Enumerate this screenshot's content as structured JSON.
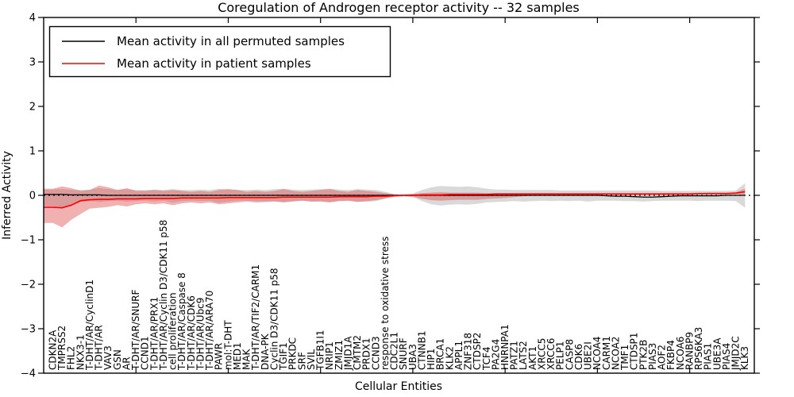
{
  "title": "Coregulation of Androgen receptor activity -- 32 samples",
  "axes": {
    "xlabel": "Cellular Entities",
    "ylabel": "Inferred Activity"
  },
  "chart_data": {
    "type": "line",
    "title": "Coregulation of Androgen receptor activity -- 32 samples",
    "xlabel": "Cellular Entities",
    "ylabel": "Inferred Activity",
    "ylim": [
      -4,
      4
    ],
    "grid": false,
    "legend_position": "upper left",
    "zero_line": 0,
    "yticks": [
      {
        "value": 4,
        "label": "4"
      },
      {
        "value": 3,
        "label": "3"
      },
      {
        "value": 2,
        "label": "2"
      },
      {
        "value": 1,
        "label": "1"
      },
      {
        "value": 0,
        "label": "0"
      },
      {
        "value": -1,
        "label": "−1"
      },
      {
        "value": -2,
        "label": "−2"
      },
      {
        "value": -3,
        "label": "−3"
      },
      {
        "value": -4,
        "label": "−4"
      }
    ],
    "xticks": [
      10,
      20,
      30,
      40,
      50,
      60,
      70
    ],
    "categories": [
      "CDKN2A",
      "TMPRSS2",
      "FHL2",
      "NKX3-1",
      "T-DHT/AR/CyclinD1",
      "T-DHT/AR",
      "VAV3",
      "GSN",
      "AR",
      "T-DHT/AR/SNURF",
      "CCND1",
      "T-DHT/AR/PRX1",
      "T-DHT/AR/Cyclin D3/CDK11 p58",
      "cell proliferation",
      "T-DHT/AR/Caspase 8",
      "T-DHT/AR/CDK6",
      "T-DHT/AR/Ubc9",
      "T-DHT/AR/ARA70",
      "PAWR",
      "mol:T-DHT",
      "MED1",
      "MAK",
      "T-DHT/AR/TIF2/CARM1",
      "DNA-PK",
      "Cyclin D3/CDK11 p58",
      "TGIF1",
      "PRKDC",
      "SRF",
      "SVIL",
      "TGFB1I1",
      "NRIP1",
      "ZMIZ1",
      "JMJD1A",
      "CMTM2",
      "PRDX1",
      "CCND3",
      "response to oxidative stress",
      "CDC2L1",
      "SNURF",
      "UBA3",
      "CTNNB1",
      "HIP1",
      "BRCA1",
      "KLK2",
      "APPL1",
      "ZNF318",
      "CTDSP2",
      "TCF4",
      "PA2G4",
      "HNRNPA1",
      "PATZ1",
      "LATS2",
      "AKT1",
      "XRCC5",
      "XRCC6",
      "PELP1",
      "CASP8",
      "CDK6",
      "UBE2I",
      "NCOA4",
      "CARM1",
      "NCOA2",
      "TMF1",
      "CTDSP1",
      "PTK2B",
      "PIAS3",
      "AOF2",
      "FKBP4",
      "NCOA6",
      "RANBP9",
      "RPS6KA3",
      "PIAS1",
      "UBE3A",
      "PIAS4",
      "JMJD2C",
      "KLK3"
    ],
    "series": [
      {
        "id": "permuted-mean",
        "name": "Mean activity in all permuted samples",
        "color": "#000000",
        "width": 1.3,
        "values": [
          0.02,
          0.02,
          0.01,
          0.01,
          0.01,
          0.01,
          0,
          0,
          0,
          0,
          0,
          0,
          0,
          0,
          0,
          0,
          0,
          0,
          0,
          0,
          0,
          0,
          0,
          0,
          0,
          0,
          0,
          0,
          0,
          0,
          0,
          0,
          0,
          0,
          0,
          0,
          0,
          0,
          0,
          0,
          0,
          0,
          0,
          0,
          0,
          0,
          0,
          0,
          0,
          0,
          0,
          0,
          0,
          0,
          0,
          0,
          0,
          0,
          0,
          0,
          -0.01,
          -0.02,
          -0.02,
          -0.03,
          -0.04,
          -0.04,
          -0.03,
          -0.02,
          -0.01,
          -0.01,
          -0.01,
          -0.01,
          -0.01,
          0,
          0,
          0
        ]
      },
      {
        "id": "patient-mean",
        "name": "Mean activity in patient samples",
        "color": "#ff0000",
        "width": 1.6,
        "values": [
          -0.27,
          -0.28,
          -0.22,
          -0.12,
          -0.1,
          -0.09,
          -0.09,
          -0.08,
          -0.08,
          -0.08,
          -0.07,
          -0.07,
          -0.07,
          -0.07,
          -0.06,
          -0.06,
          -0.06,
          -0.06,
          -0.06,
          -0.05,
          -0.05,
          -0.05,
          -0.05,
          -0.05,
          -0.05,
          -0.04,
          -0.04,
          -0.04,
          -0.04,
          -0.04,
          -0.04,
          -0.03,
          -0.03,
          -0.03,
          -0.03,
          -0.02,
          -0.02,
          -0.01,
          0,
          0,
          0.01,
          0.01,
          0.01,
          0.02,
          0.02,
          0.02,
          0.02,
          0.02,
          0.03,
          0.03,
          0.03,
          0.03,
          0.03,
          0.03,
          0.03,
          0.03,
          0.03,
          0.03,
          0.03,
          0.03,
          0.03,
          0.03,
          0.03,
          0.03,
          0.03,
          0.03,
          0.03,
          0.03,
          0.03,
          0.03,
          0.04,
          0.04,
          0.04,
          0.04,
          0.05,
          0.08
        ]
      }
    ],
    "bands": [
      {
        "id": "permuted-range",
        "name": "permuted samples range",
        "color": "#000000",
        "opacity": 0.15,
        "upper": [
          0.13,
          0.14,
          0.12,
          0.12,
          0.13,
          0.16,
          0.14,
          0.12,
          0.14,
          0.12,
          0.12,
          0.13,
          0.12,
          0.14,
          0.12,
          0.12,
          0.13,
          0.12,
          0.15,
          0.13,
          0.12,
          0.12,
          0.13,
          0.12,
          0.14,
          0.15,
          0.13,
          0.12,
          0.13,
          0.14,
          0.15,
          0.13,
          0.12,
          0.14,
          0.13,
          0.12,
          0.08,
          0.03,
          0.02,
          0.04,
          0.12,
          0.18,
          0.21,
          0.2,
          0.19,
          0.2,
          0.18,
          0.15,
          0.13,
          0.13,
          0.12,
          0.12,
          0.12,
          0.12,
          0.12,
          0.11,
          0.11,
          0.11,
          0.11,
          0.11,
          0.11,
          0.11,
          0.11,
          0.11,
          0.11,
          0.11,
          0.1,
          0.1,
          0.1,
          0.1,
          0.1,
          0.1,
          0.1,
          0.1,
          0.11,
          0.27
        ],
        "lower": [
          -0.25,
          -0.3,
          -0.22,
          -0.15,
          -0.13,
          -0.15,
          -0.13,
          -0.12,
          -0.14,
          -0.13,
          -0.12,
          -0.14,
          -0.12,
          -0.16,
          -0.13,
          -0.12,
          -0.13,
          -0.12,
          -0.17,
          -0.14,
          -0.12,
          -0.12,
          -0.13,
          -0.14,
          -0.13,
          -0.15,
          -0.13,
          -0.12,
          -0.14,
          -0.13,
          -0.15,
          -0.13,
          -0.12,
          -0.14,
          -0.15,
          -0.13,
          -0.08,
          -0.03,
          -0.02,
          -0.04,
          -0.13,
          -0.2,
          -0.23,
          -0.21,
          -0.2,
          -0.21,
          -0.19,
          -0.16,
          -0.15,
          -0.14,
          -0.13,
          -0.14,
          -0.13,
          -0.12,
          -0.13,
          -0.12,
          -0.13,
          -0.12,
          -0.14,
          -0.12,
          -0.12,
          -0.12,
          -0.13,
          -0.13,
          -0.14,
          -0.13,
          -0.12,
          -0.12,
          -0.12,
          -0.12,
          -0.13,
          -0.12,
          -0.12,
          -0.12,
          -0.13,
          -0.28
        ]
      },
      {
        "id": "patient-range",
        "name": "patient samples range",
        "color": "#dd4444",
        "opacity": 0.42,
        "upper": [
          0.15,
          0.2,
          0.16,
          0.1,
          0.12,
          0.22,
          0.18,
          0.12,
          0.16,
          0.1,
          0.1,
          0.12,
          0.1,
          0.12,
          0.1,
          0.08,
          0.1,
          0.08,
          0.12,
          0.14,
          0.12,
          0.08,
          0.1,
          0.08,
          0.1,
          0.14,
          0.1,
          0.08,
          0.1,
          0.12,
          0.14,
          0.1,
          0.08,
          0.12,
          0.1,
          0.08,
          0.05,
          0.02,
          0.01,
          0.03,
          0.05,
          0.06,
          0.07,
          0.06,
          0.06,
          0.06,
          0.06,
          0.05,
          0.05,
          0.05,
          0.05,
          0.05,
          0.05,
          0.05,
          0.05,
          0.05,
          0.05,
          0.05,
          0.05,
          0.05,
          0.05,
          0.05,
          0.05,
          0.05,
          0.05,
          0.05,
          0.05,
          0.05,
          0.05,
          0.05,
          0.05,
          0.06,
          0.06,
          0.06,
          0.07,
          0.15
        ],
        "lower": [
          -0.62,
          -0.72,
          -0.55,
          -0.42,
          -0.3,
          -0.28,
          -0.26,
          -0.22,
          -0.25,
          -0.2,
          -0.18,
          -0.2,
          -0.18,
          -0.22,
          -0.18,
          -0.16,
          -0.18,
          -0.16,
          -0.2,
          -0.18,
          -0.16,
          -0.14,
          -0.16,
          -0.15,
          -0.14,
          -0.16,
          -0.14,
          -0.12,
          -0.14,
          -0.14,
          -0.16,
          -0.13,
          -0.12,
          -0.15,
          -0.13,
          -0.11,
          -0.07,
          -0.03,
          -0.02,
          -0.03,
          -0.08,
          -0.11,
          -0.12,
          -0.11,
          -0.1,
          -0.1,
          -0.1,
          -0.08,
          -0.07,
          -0.06,
          -0.04,
          -0.02,
          -0.01,
          0.0,
          0.0,
          0.01,
          0.01,
          0.01,
          0.01,
          0.01,
          0.01,
          0.01,
          0.01,
          0.01,
          0.01,
          0.01,
          0.01,
          0.01,
          0.01,
          0.01,
          0.02,
          0.02,
          0.02,
          0.02,
          0.03,
          0.02
        ]
      }
    ]
  }
}
